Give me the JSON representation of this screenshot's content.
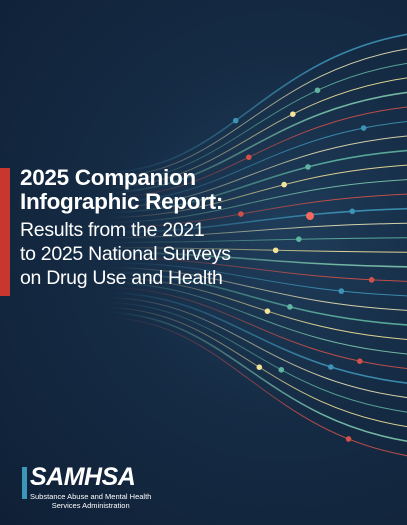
{
  "cover": {
    "title": [
      "2025 Companion",
      "Infographic Report:"
    ],
    "subtitle": [
      "Results from the 2021",
      "to 2025 National Surveys",
      "on Drug Use and Health"
    ],
    "logo": {
      "name": "SAMHSA",
      "tagline": [
        "Substance Abuse and Mental Health",
        "Services Administration"
      ]
    }
  }
}
